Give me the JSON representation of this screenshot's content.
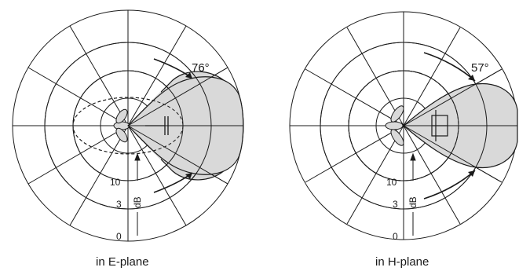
{
  "colors": {
    "lobe_fill": "#d9d9d9",
    "line": "#1a1a1a",
    "background": "#ffffff"
  },
  "chart_data": [
    {
      "type": "polar-radiation-pattern",
      "caption": "in E-plane",
      "half_power_beamwidth_label": "76°",
      "half_power_beamwidth_deg": 76,
      "radial_tick_labels": [
        "0",
        "3",
        "10"
      ],
      "radial_unit": "dB",
      "antenna_symbol": "dipole"
    },
    {
      "type": "polar-radiation-pattern",
      "caption": "in H-plane",
      "half_power_beamwidth_label": "57°",
      "half_power_beamwidth_deg": 57,
      "radial_tick_labels": [
        "0",
        "3",
        "10"
      ],
      "radial_unit": "dB",
      "antenna_symbol": "rectangle"
    }
  ]
}
